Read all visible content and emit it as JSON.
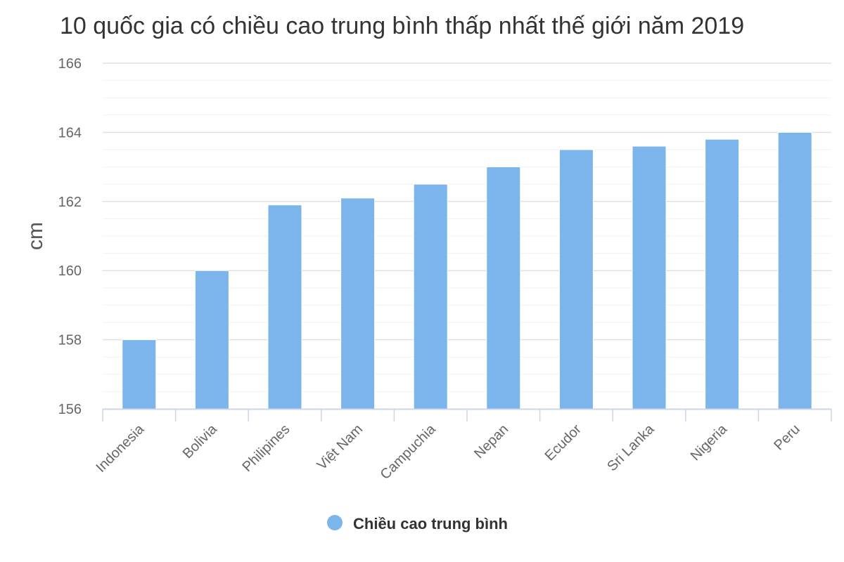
{
  "chart_data": {
    "type": "bar",
    "title": "10 quốc gia có chiều cao trung bình thấp nhất thế giới năm 2019",
    "ylabel": "cm",
    "xlabel": "",
    "ylim": [
      156,
      166
    ],
    "yticks": [
      156,
      158,
      160,
      162,
      164,
      166
    ],
    "grid": true,
    "legend_position": "bottom",
    "categories": [
      "Indonesia",
      "Bolivia",
      "Philipines",
      "Việt Nam",
      "Campuchia",
      "Nepan",
      "Ecudor",
      "Sri Lanka",
      "Nigeria",
      "Peru"
    ],
    "series": [
      {
        "name": "Chiều cao trung bình",
        "color": "#7cb5ec",
        "values": [
          158.0,
          160.0,
          161.9,
          162.1,
          162.5,
          163.0,
          163.5,
          163.6,
          163.8,
          164.0
        ]
      }
    ]
  }
}
